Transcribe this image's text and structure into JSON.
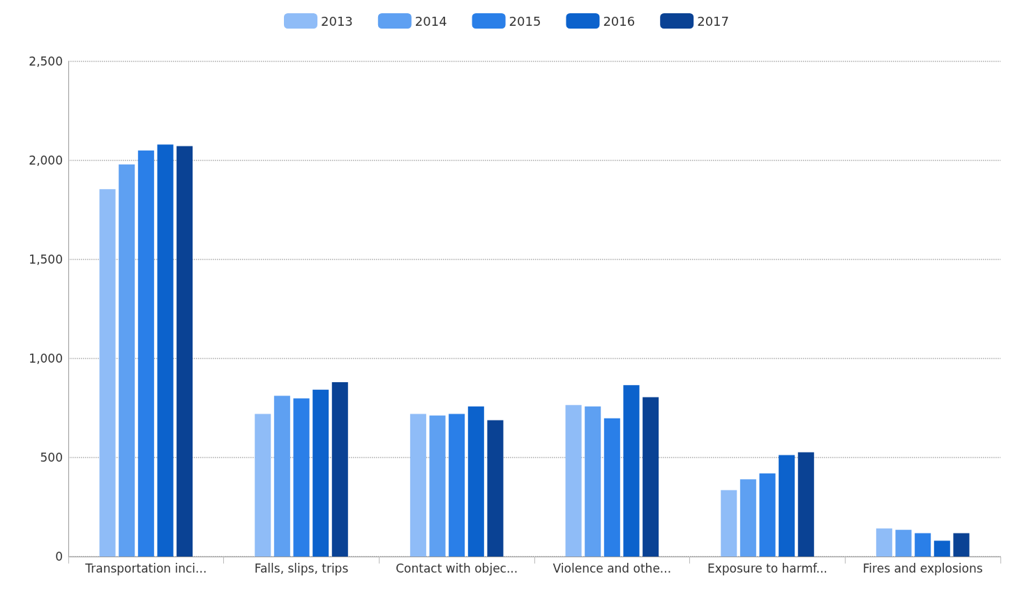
{
  "chart_data": {
    "type": "bar",
    "categories": [
      "Transportation inci...",
      "Falls, slips, trips",
      "Contact with objec...",
      "Violence and othe...",
      "Exposure to harmf...",
      "Fires and explosions"
    ],
    "series": [
      {
        "name": "2013",
        "color": "#8fbcf7",
        "values": [
          1855,
          720,
          720,
          765,
          335,
          142
        ]
      },
      {
        "name": "2014",
        "color": "#5ea0f2",
        "values": [
          1980,
          812,
          712,
          758,
          390,
          135
        ]
      },
      {
        "name": "2015",
        "color": "#2a7fe8",
        "values": [
          2050,
          798,
          720,
          698,
          420,
          118
        ]
      },
      {
        "name": "2016",
        "color": "#0c62cc",
        "values": [
          2080,
          842,
          758,
          865,
          512,
          80
        ]
      },
      {
        "name": "2017",
        "color": "#0a4294",
        "values": [
          2072,
          880,
          688,
          805,
          526,
          118
        ]
      }
    ],
    "ylim": [
      0,
      2500
    ],
    "yticks": [
      0,
      500,
      {
        "value": 1000,
        "label": "1,000"
      },
      {
        "value": 1500,
        "label": "1,500"
      },
      {
        "value": 2000,
        "label": "2,000"
      },
      {
        "value": 2500,
        "label": "2,500"
      }
    ],
    "grid": "y",
    "legend": "top"
  }
}
